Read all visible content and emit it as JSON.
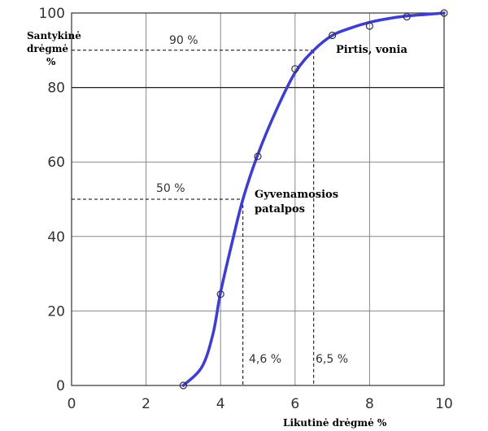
{
  "chart_data": {
    "type": "line",
    "xlabel": "Likutinė drėgmė %",
    "ylabel_lines": [
      "Santykinė",
      "drėgmė",
      "%"
    ],
    "xlim": [
      0,
      10
    ],
    "ylim": [
      0,
      100
    ],
    "x_ticks": [
      0,
      2,
      4,
      6,
      8,
      10
    ],
    "y_ticks": [
      0,
      20,
      40,
      60,
      80,
      100
    ],
    "grid": true,
    "series": [
      {
        "color": "#3a3ae6",
        "curve_x": [
          3.0,
          3.5,
          3.8,
          4.0,
          4.3,
          4.6,
          5.0,
          5.5,
          6.0,
          6.5,
          7.0,
          7.5,
          8.0,
          8.5,
          9.0,
          9.5,
          10.0
        ],
        "curve_y": [
          0,
          5,
          14,
          25,
          38,
          50,
          62,
          74,
          84,
          90,
          94,
          96,
          97.5,
          98.5,
          99.2,
          99.6,
          100
        ],
        "markers_x": [
          3,
          4,
          5,
          6,
          7,
          8,
          9,
          10
        ],
        "markers_y": [
          0,
          24.5,
          61.5,
          85,
          94,
          96.5,
          99,
          100
        ]
      }
    ],
    "reference_lines": [
      {
        "label": "50 %",
        "y": 50,
        "x": 4.6,
        "x_label": "4,6 %",
        "annotation": [
          "Gyvenamosios",
          "patalpos"
        ]
      },
      {
        "label": "90 %",
        "y": 90,
        "x": 6.5,
        "x_label": "6,5 %",
        "annotation": [
          "Pirtis, vonia"
        ]
      }
    ]
  }
}
